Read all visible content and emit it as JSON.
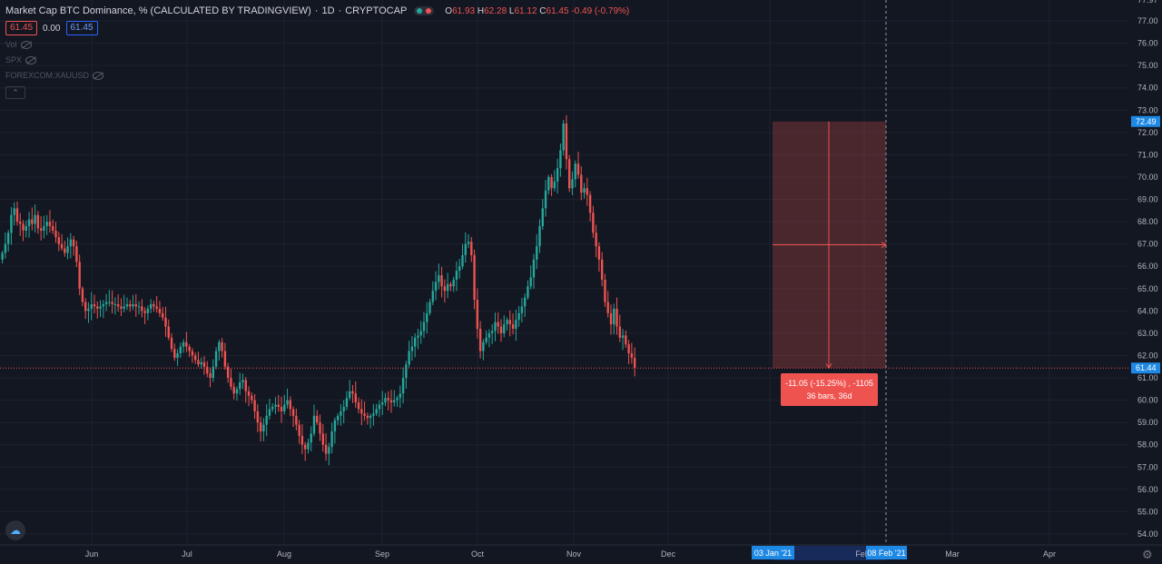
{
  "header": {
    "title": "Market Cap BTC Dominance, % (CALCULATED BY TRADINGVIEW)",
    "interval": "1D",
    "exchange": "CRYPTOCAP",
    "ohlc": {
      "o_label": "O",
      "o": "61.93",
      "h_label": "H",
      "h": "62.28",
      "l_label": "L",
      "l": "61.12",
      "c_label": "C",
      "c": "61.45",
      "change": "-0.49 (-0.79%)"
    },
    "sell_price": "61.45",
    "spread": "0.00",
    "buy_price": "61.45"
  },
  "indicators": [
    {
      "label": "Vol",
      "icon": "eye-off-icon"
    },
    {
      "label": "SPX",
      "icon": "eye-off-icon"
    },
    {
      "label": "FOREXCOM:XAUUSD",
      "icon": "eye-off-icon"
    }
  ],
  "colors": {
    "background": "#131722",
    "up": "#26a69a",
    "down": "#ef5350",
    "grid": "#1e222d",
    "range_fill": "rgba(239,83,80,0.25)",
    "accent": "#2962ff",
    "label_blue": "#1e88e5"
  },
  "chart_data": {
    "type": "candlestick",
    "x_tick_labels": [
      "Jun",
      "Jul",
      "Aug",
      "Sep",
      "Oct",
      "Nov",
      "Dec",
      "Feb",
      "Mar",
      "Apr"
    ],
    "x_start": "2020-05-05",
    "y_range": [
      53.4,
      78.0
    ],
    "y_tick_labels": [
      "54.00",
      "55.00",
      "56.00",
      "57.00",
      "58.00",
      "59.00",
      "60.00",
      "61.00",
      "62.00",
      "63.00",
      "64.00",
      "65.00",
      "66.00",
      "67.00",
      "68.00",
      "69.00",
      "70.00",
      "71.00",
      "72.00",
      "73.00",
      "74.00",
      "75.00",
      "76.00",
      "77.00"
    ],
    "top_partial_label": "77.97",
    "close_series": [
      66.6,
      67.0,
      67.5,
      68.3,
      68.6,
      68.0,
      67.9,
      67.6,
      67.8,
      68.1,
      67.9,
      68.3,
      67.7,
      67.6,
      67.8,
      68.0,
      67.8,
      67.6,
      67.3,
      67.0,
      66.8,
      66.6,
      66.9,
      67.2,
      66.9,
      66.2,
      65.0,
      64.4,
      64.0,
      64.1,
      64.3,
      64.2,
      64.1,
      64.2,
      64.3,
      64.4,
      64.4,
      64.3,
      64.3,
      64.2,
      64.1,
      64.2,
      64.3,
      64.2,
      64.3,
      64.2,
      64.2,
      64.0,
      63.9,
      64.1,
      64.3,
      64.2,
      64.1,
      63.9,
      63.7,
      63.3,
      62.8,
      62.3,
      61.9,
      62.1,
      62.4,
      62.6,
      62.4,
      62.2,
      62.0,
      61.8,
      61.6,
      61.7,
      61.5,
      61.2,
      61.0,
      61.5,
      62.2,
      62.6,
      62.2,
      61.5,
      61.0,
      60.6,
      60.3,
      60.5,
      60.8,
      60.9,
      60.4,
      60.2,
      60.0,
      59.5,
      59.0,
      58.6,
      58.9,
      59.3,
      59.6,
      59.7,
      59.8,
      59.7,
      59.5,
      59.8,
      60.0,
      59.6,
      59.3,
      58.9,
      58.4,
      58.0,
      57.8,
      58.1,
      58.5,
      59.3,
      59.0,
      58.5,
      58.0,
      57.6,
      57.9,
      58.6,
      59.1,
      59.3,
      59.5,
      59.7,
      60.1,
      60.4,
      60.3,
      59.9,
      59.6,
      59.4,
      59.3,
      59.2,
      59.3,
      59.4,
      59.6,
      59.8,
      59.9,
      60.1,
      60.0,
      59.9,
      60.0,
      60.1,
      60.3,
      61.0,
      61.6,
      62.2,
      62.4,
      62.8,
      62.9,
      63.1,
      63.5,
      63.9,
      64.4,
      64.9,
      65.3,
      65.6,
      65.1,
      64.9,
      65.2,
      65.1,
      65.4,
      65.8,
      66.0,
      66.5,
      67.0,
      67.1,
      66.5,
      64.5,
      63.2,
      62.2,
      62.6,
      62.8,
      63.0,
      63.1,
      63.5,
      63.3,
      63.0,
      63.4,
      63.6,
      63.4,
      63.2,
      63.6,
      63.9,
      64.2,
      64.6,
      65.1,
      65.5,
      66.3,
      66.9,
      67.8,
      68.6,
      69.4,
      70.0,
      69.5,
      69.8,
      70.4,
      71.2,
      72.4,
      70.8,
      69.5,
      69.9,
      70.6,
      70.1,
      69.3,
      69.5,
      69.2,
      68.4,
      67.5,
      66.9,
      66.3,
      65.4,
      64.4,
      63.9,
      63.4,
      64.1,
      63.3,
      62.8,
      62.9,
      62.5,
      62.1,
      61.9,
      61.45
    ],
    "candle_spacing_px": 3.27,
    "measure": {
      "from_date": "03 Jan '21",
      "to_date": "08 Feb '21",
      "label_line1": "-11.05 (-15.25%) , -1105",
      "label_line2": "36 bars, 36d",
      "top_value": 72.49,
      "bottom_value": 61.44
    },
    "price_labels": {
      "top": "72.49",
      "current": "61.44"
    },
    "crosshair_date": "08 Feb '21"
  }
}
